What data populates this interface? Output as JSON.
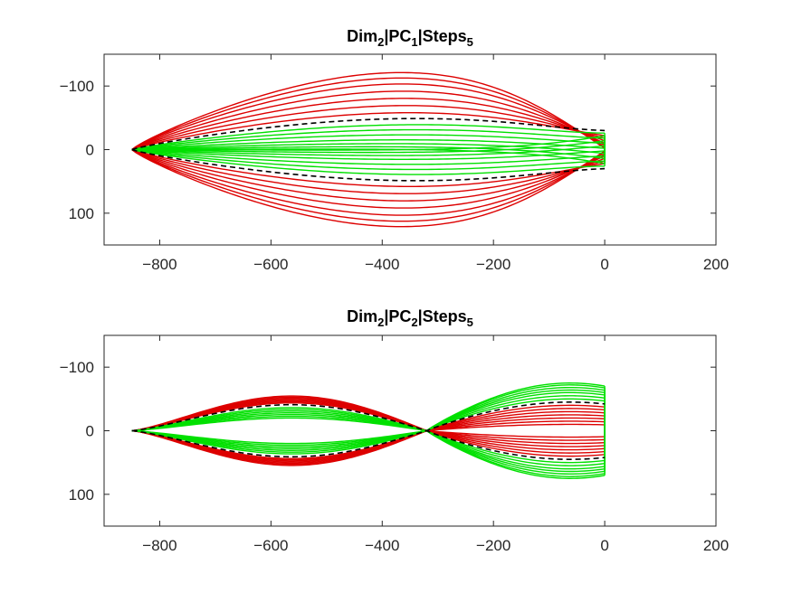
{
  "chart_data": [
    {
      "type": "line",
      "title": {
        "base1": "Dim",
        "sub1": "2",
        "base2": "|PC",
        "sub2": "1",
        "base3": "|Steps",
        "sub3": "5"
      },
      "xlim": [
        -900,
        200
      ],
      "ylim": [
        -150,
        150
      ],
      "y_reversed": true,
      "xticks": [
        -800,
        -600,
        -400,
        -200,
        0,
        200
      ],
      "yticks": [
        -100,
        0,
        100
      ],
      "xtick_labels": [
        "−800",
        "−600",
        "−400",
        "−200",
        "0",
        "200"
      ],
      "ytick_labels": [
        "−100",
        "0",
        "100"
      ],
      "colors": {
        "positive": "#dd0000",
        "negative": "#00e000",
        "mean": "#000000"
      },
      "mean_shape": {
        "tip_x": -850,
        "end_x": 0,
        "max_halfwidth": 50,
        "end_halfwidth": 30
      },
      "series": [
        {
          "group": "positive",
          "max_halfwidth": 60,
          "end_halfwidth": 22
        },
        {
          "group": "positive",
          "max_halfwidth": 72,
          "end_halfwidth": 18
        },
        {
          "group": "positive",
          "max_halfwidth": 84,
          "end_halfwidth": 14
        },
        {
          "group": "positive",
          "max_halfwidth": 96,
          "end_halfwidth": 10
        },
        {
          "group": "positive",
          "max_halfwidth": 108,
          "end_halfwidth": 7
        },
        {
          "group": "positive",
          "max_halfwidth": 118,
          "end_halfwidth": 4
        },
        {
          "group": "positive",
          "max_halfwidth": 127,
          "end_halfwidth": 2
        },
        {
          "group": "negative",
          "max_halfwidth": 40,
          "end_halfwidth": 26
        },
        {
          "group": "negative",
          "max_halfwidth": 32,
          "end_halfwidth": 18
        },
        {
          "group": "negative",
          "max_halfwidth": 24,
          "end_halfwidth": 10
        },
        {
          "group": "negative",
          "max_halfwidth": 16,
          "end_halfwidth": 2
        },
        {
          "group": "negative",
          "max_halfwidth": 10,
          "end_halfwidth": -6
        },
        {
          "group": "negative",
          "max_halfwidth": 5,
          "end_halfwidth": -14
        },
        {
          "group": "negative",
          "max_halfwidth": 1,
          "end_halfwidth": -22
        }
      ]
    },
    {
      "type": "line",
      "title": {
        "base1": "Dim",
        "sub1": "2",
        "base2": "|PC",
        "sub2": "2",
        "base3": "|Steps",
        "sub3": "5"
      },
      "xlim": [
        -900,
        200
      ],
      "ylim": [
        -150,
        150
      ],
      "y_reversed": true,
      "xticks": [
        -800,
        -600,
        -400,
        -200,
        0,
        200
      ],
      "yticks": [
        -100,
        0,
        100
      ],
      "xtick_labels": [
        "−800",
        "−600",
        "−400",
        "−200",
        "0",
        "200"
      ],
      "ytick_labels": [
        "−100",
        "0",
        "100"
      ],
      "colors": {
        "positive": "#dd0000",
        "negative": "#00e000",
        "mean": "#000000"
      },
      "crossing_x": -320,
      "mean_shape": {
        "tip_x": -850,
        "end_x": 0,
        "left_halfwidth": 45,
        "right_halfwidth": 45
      },
      "series": [
        {
          "group": "positive",
          "left_halfwidth": 48,
          "right_halfwidth": 40
        },
        {
          "group": "positive",
          "left_halfwidth": 50,
          "right_halfwidth": 35
        },
        {
          "group": "positive",
          "left_halfwidth": 52,
          "right_halfwidth": 30
        },
        {
          "group": "positive",
          "left_halfwidth": 54,
          "right_halfwidth": 25
        },
        {
          "group": "positive",
          "left_halfwidth": 56,
          "right_halfwidth": 20
        },
        {
          "group": "positive",
          "left_halfwidth": 58,
          "right_halfwidth": 15
        },
        {
          "group": "positive",
          "left_halfwidth": 60,
          "right_halfwidth": 10
        },
        {
          "group": "negative",
          "left_halfwidth": 40,
          "right_halfwidth": 50
        },
        {
          "group": "negative",
          "left_halfwidth": 37,
          "right_halfwidth": 55
        },
        {
          "group": "negative",
          "left_halfwidth": 34,
          "right_halfwidth": 60
        },
        {
          "group": "negative",
          "left_halfwidth": 31,
          "right_halfwidth": 64
        },
        {
          "group": "negative",
          "left_halfwidth": 28,
          "right_halfwidth": 68
        },
        {
          "group": "negative",
          "left_halfwidth": 25,
          "right_halfwidth": 72
        },
        {
          "group": "negative",
          "left_halfwidth": 22,
          "right_halfwidth": 75
        }
      ]
    }
  ]
}
